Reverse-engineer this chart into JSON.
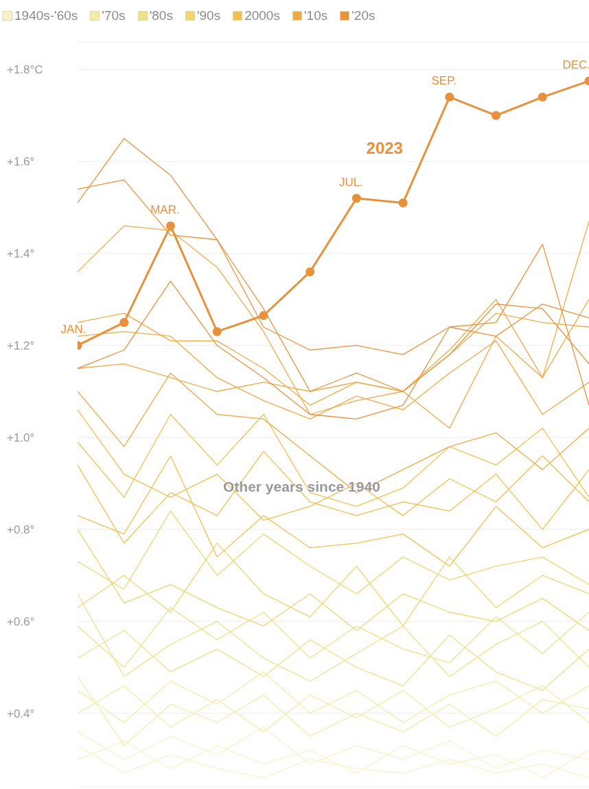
{
  "chart_data": {
    "type": "line",
    "categories": [
      "JAN.",
      null,
      "MAR.",
      null,
      null,
      null,
      "JUL.",
      null,
      "SEP.",
      null,
      null,
      "DEC."
    ],
    "ylim": [
      0.24,
      1.86
    ],
    "yticks": [
      {
        "value": 0.4,
        "label": "+0.4°"
      },
      {
        "value": 0.6,
        "label": "+0.6°"
      },
      {
        "value": 0.8,
        "label": "+0.8°"
      },
      {
        "value": 1.0,
        "label": "+1.0°"
      },
      {
        "value": 1.2,
        "label": "+1.2°"
      },
      {
        "value": 1.4,
        "label": "+1.4°"
      },
      {
        "value": 1.6,
        "label": "+1.6°"
      },
      {
        "value": 1.8,
        "label": "+1.8°C"
      }
    ],
    "grid": "y",
    "legend": "top left",
    "tick_labels": "y",
    "marker": "none",
    "line_style": "solid",
    "annotations": [
      "Other years since 1940"
    ],
    "series": [
      {
        "name": "1940s-'60s",
        "color": "#f8f3c8",
        "values": [
          0.36,
          0.3,
          0.35,
          0.31,
          0.37,
          0.29,
          0.33,
          0.3,
          0.34,
          0.28,
          0.32,
          0.3
        ]
      },
      {
        "color": "#f8f3c8",
        "values": [
          0.3,
          0.34,
          0.28,
          0.33,
          0.29,
          0.32,
          0.27,
          0.33,
          0.29,
          0.31,
          0.26,
          0.32
        ]
      },
      {
        "color": "#f8f3c8",
        "values": [
          0.33,
          0.27,
          0.31,
          0.28,
          0.26,
          0.3,
          0.28,
          0.27,
          0.3,
          0.27,
          0.29,
          0.26
        ]
      },
      {
        "name": "'70s",
        "color": "#f4eca8",
        "values": [
          0.45,
          0.38,
          0.47,
          0.42,
          0.49,
          0.4,
          0.45,
          0.38,
          0.44,
          0.47,
          0.4,
          0.46
        ]
      },
      {
        "color": "#f4eca8",
        "values": [
          0.4,
          0.46,
          0.37,
          0.43,
          0.36,
          0.44,
          0.39,
          0.45,
          0.37,
          0.41,
          0.46,
          0.38
        ]
      },
      {
        "color": "#f4eca8",
        "values": [
          0.48,
          0.33,
          0.42,
          0.38,
          0.44,
          0.35,
          0.4,
          0.36,
          0.42,
          0.35,
          0.43,
          0.41
        ]
      },
      {
        "name": "'80s",
        "color": "#f1e08a",
        "values": [
          0.59,
          0.5,
          0.63,
          0.56,
          0.62,
          0.52,
          0.59,
          0.54,
          0.51,
          0.61,
          0.53,
          0.62
        ]
      },
      {
        "color": "#f1e08a",
        "values": [
          0.52,
          0.58,
          0.49,
          0.54,
          0.48,
          0.56,
          0.5,
          0.46,
          0.57,
          0.49,
          0.45,
          0.54
        ]
      },
      {
        "color": "#f1e08a",
        "values": [
          0.66,
          0.48,
          0.55,
          0.6,
          0.52,
          0.47,
          0.53,
          0.59,
          0.48,
          0.55,
          0.6,
          0.5
        ]
      },
      {
        "name": "'90s",
        "color": "#efd66e",
        "values": [
          0.73,
          0.67,
          0.84,
          0.7,
          0.79,
          0.72,
          0.66,
          0.74,
          0.69,
          0.72,
          0.74,
          0.68
        ]
      },
      {
        "color": "#efd66e",
        "values": [
          0.63,
          0.7,
          0.62,
          0.77,
          0.66,
          0.61,
          0.72,
          0.59,
          0.74,
          0.63,
          0.7,
          0.66
        ]
      },
      {
        "color": "#efd66e",
        "values": [
          0.8,
          0.64,
          0.68,
          0.63,
          0.59,
          0.66,
          0.58,
          0.66,
          0.62,
          0.6,
          0.65,
          0.58
        ]
      },
      {
        "name": "2000s",
        "color": "#f0c050",
        "values": [
          0.99,
          0.87,
          1.05,
          0.94,
          1.05,
          0.88,
          0.85,
          0.89,
          0.98,
          0.94,
          1.02,
          0.87
        ]
      },
      {
        "color": "#f0c050",
        "values": [
          0.94,
          0.77,
          0.88,
          0.83,
          0.97,
          0.86,
          0.83,
          0.86,
          0.84,
          0.92,
          0.8,
          0.93
        ]
      },
      {
        "color": "#f0c050",
        "values": [
          0.83,
          0.79,
          0.96,
          0.74,
          0.83,
          0.76,
          0.77,
          0.79,
          0.72,
          0.85,
          0.76,
          0.8
        ]
      },
      {
        "color": "#f0c050",
        "values": [
          1.06,
          0.92,
          0.87,
          0.92,
          0.82,
          0.85,
          0.9,
          0.83,
          0.91,
          0.86,
          0.96,
          0.86
        ]
      },
      {
        "name": "'10s",
        "color": "#eeab45",
        "values": [
          1.36,
          1.46,
          1.45,
          1.37,
          1.23,
          1.05,
          1.08,
          1.1,
          1.19,
          1.3,
          1.13,
          1.47
        ]
      },
      {
        "color": "#eeab45",
        "values": [
          1.25,
          1.27,
          1.21,
          1.21,
          1.15,
          1.07,
          1.12,
          1.1,
          1.18,
          1.27,
          1.25,
          1.24
        ]
      },
      {
        "color": "#eeab45",
        "values": [
          1.22,
          1.23,
          1.22,
          1.13,
          1.08,
          1.04,
          1.09,
          1.06,
          1.14,
          1.21,
          1.05,
          1.12
        ]
      },
      {
        "color": "#eeab45",
        "values": [
          1.1,
          0.98,
          1.14,
          1.05,
          1.04,
          0.96,
          0.88,
          0.93,
          0.98,
          1.01,
          0.93,
          1.02
        ]
      },
      {
        "color": "#eeab45",
        "values": [
          1.15,
          1.16,
          1.13,
          1.1,
          1.12,
          1.1,
          1.12,
          1.1,
          1.02,
          1.22,
          1.13,
          1.3
        ]
      },
      {
        "name": "'20s",
        "color": "#e8923a",
        "values": [
          1.51,
          1.65,
          1.57,
          1.43,
          1.28,
          1.1,
          1.14,
          1.1,
          1.18,
          1.29,
          1.28,
          1.16
        ]
      },
      {
        "color": "#e8923a",
        "values": [
          1.54,
          1.56,
          1.44,
          1.43,
          1.24,
          1.19,
          1.2,
          1.18,
          1.24,
          1.22,
          1.29,
          1.26
        ]
      },
      {
        "color": "#e8923a",
        "values": [
          1.15,
          1.19,
          1.34,
          1.2,
          1.13,
          1.05,
          1.04,
          1.07,
          1.24,
          1.25,
          1.42,
          1.07
        ]
      },
      {
        "name": "2023",
        "color": "#e8913a",
        "marker": "circle",
        "values": [
          1.2,
          1.25,
          1.46,
          1.23,
          1.265,
          1.36,
          1.52,
          1.51,
          1.74,
          1.7,
          1.74,
          1.775
        ]
      }
    ]
  }
}
